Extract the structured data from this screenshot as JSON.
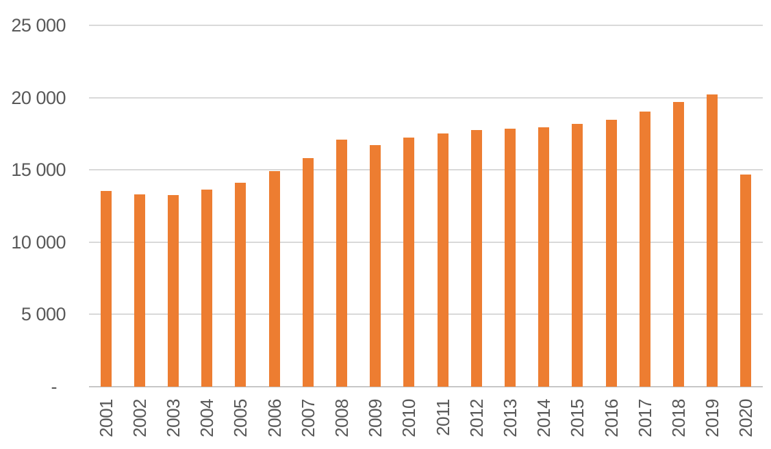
{
  "chart_data": {
    "type": "bar",
    "title": "",
    "xlabel": "",
    "ylabel": "",
    "categories": [
      "2001",
      "2002",
      "2003",
      "2004",
      "2005",
      "2006",
      "2007",
      "2008",
      "2009",
      "2010",
      "2011",
      "2012",
      "2013",
      "2014",
      "2015",
      "2016",
      "2017",
      "2018",
      "2019",
      "2020"
    ],
    "values": [
      13550,
      13300,
      13250,
      13650,
      14100,
      14900,
      15800,
      17100,
      16700,
      17250,
      17500,
      17750,
      17850,
      17950,
      18200,
      18450,
      19050,
      19700,
      20200,
      14700
    ],
    "ylim": [
      0,
      25000
    ],
    "yticks": [
      0,
      5000,
      10000,
      15000,
      20000,
      25000
    ],
    "ytick_labels": [
      "-",
      "5 000",
      "10 000",
      "15 000",
      "20 000",
      "25 000"
    ],
    "grid": true,
    "legend": "none",
    "series_color": "#ED7D31",
    "gridline_color": "#D9D9D9",
    "axis_line_color": "#C6C6C6",
    "text_color": "#595959"
  }
}
